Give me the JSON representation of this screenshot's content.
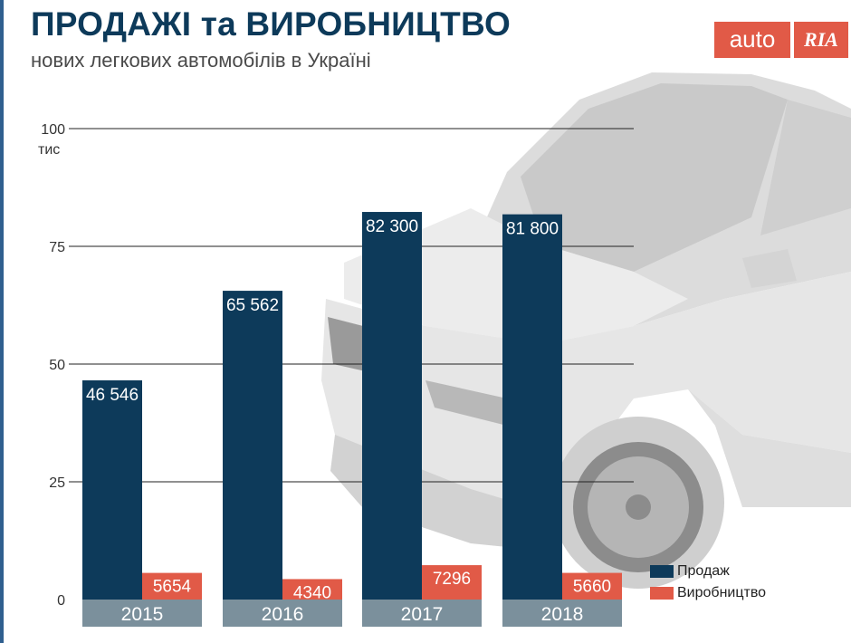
{
  "header": {
    "title": "ПРОДАЖІ та ВИРОБНИЦТВО",
    "subtitle": "нових легкових автомобілів в Україні"
  },
  "logo": {
    "word": "auto",
    "mark": "RIA"
  },
  "colors": {
    "sales": "#0d3a5a",
    "production": "#e15a47",
    "category_band": "#7b909c",
    "title": "#0d3a5a"
  },
  "chart_data": {
    "type": "bar",
    "title": "ПРОДАЖІ та ВИРОБНИЦТВО",
    "subtitle": "нових легкових автомобілів в Україні",
    "categories": [
      "2015",
      "2016",
      "2017",
      "2018"
    ],
    "ylim": [
      0,
      100
    ],
    "yticks": [
      0,
      25,
      50,
      75,
      100
    ],
    "y_unit": "тис",
    "grid": true,
    "legend_position": "bottom-right",
    "series": [
      {
        "name": "Продаж",
        "values": [
          46546,
          65562,
          82300,
          81800
        ],
        "labels": [
          "46 546",
          "65 562",
          "82 300",
          "81 800"
        ]
      },
      {
        "name": "Виробництво",
        "values": [
          5654,
          4340,
          7296,
          5660
        ],
        "labels": [
          "5654",
          "4340",
          "7296",
          "5660"
        ]
      }
    ]
  },
  "legend": {
    "items": [
      {
        "label": "Продаж",
        "icon": "square-swatch"
      },
      {
        "label": "Виробництво",
        "icon": "square-swatch"
      }
    ]
  }
}
